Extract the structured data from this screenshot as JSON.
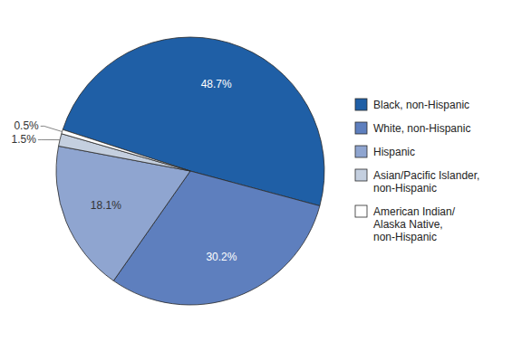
{
  "chart_data": {
    "type": "pie",
    "categories": [
      "Black, non-Hispanic",
      "White, non-Hispanic",
      "Hispanic",
      "Asian/Pacific Islander,\nnon-Hispanic",
      "American Indian/\nAlaska Native,\nnon-Hispanic"
    ],
    "values": [
      48.7,
      30.2,
      18.1,
      1.5,
      0.5
    ],
    "value_labels": [
      "48.7%",
      "30.2%",
      "18.1%",
      "1.5%",
      "0.5%"
    ],
    "colors": [
      "#1f5fa6",
      "#5e7fbe",
      "#8fa5d0",
      "#c4cfdf",
      "#ffffff"
    ],
    "data_labels": true,
    "legend": "right"
  }
}
